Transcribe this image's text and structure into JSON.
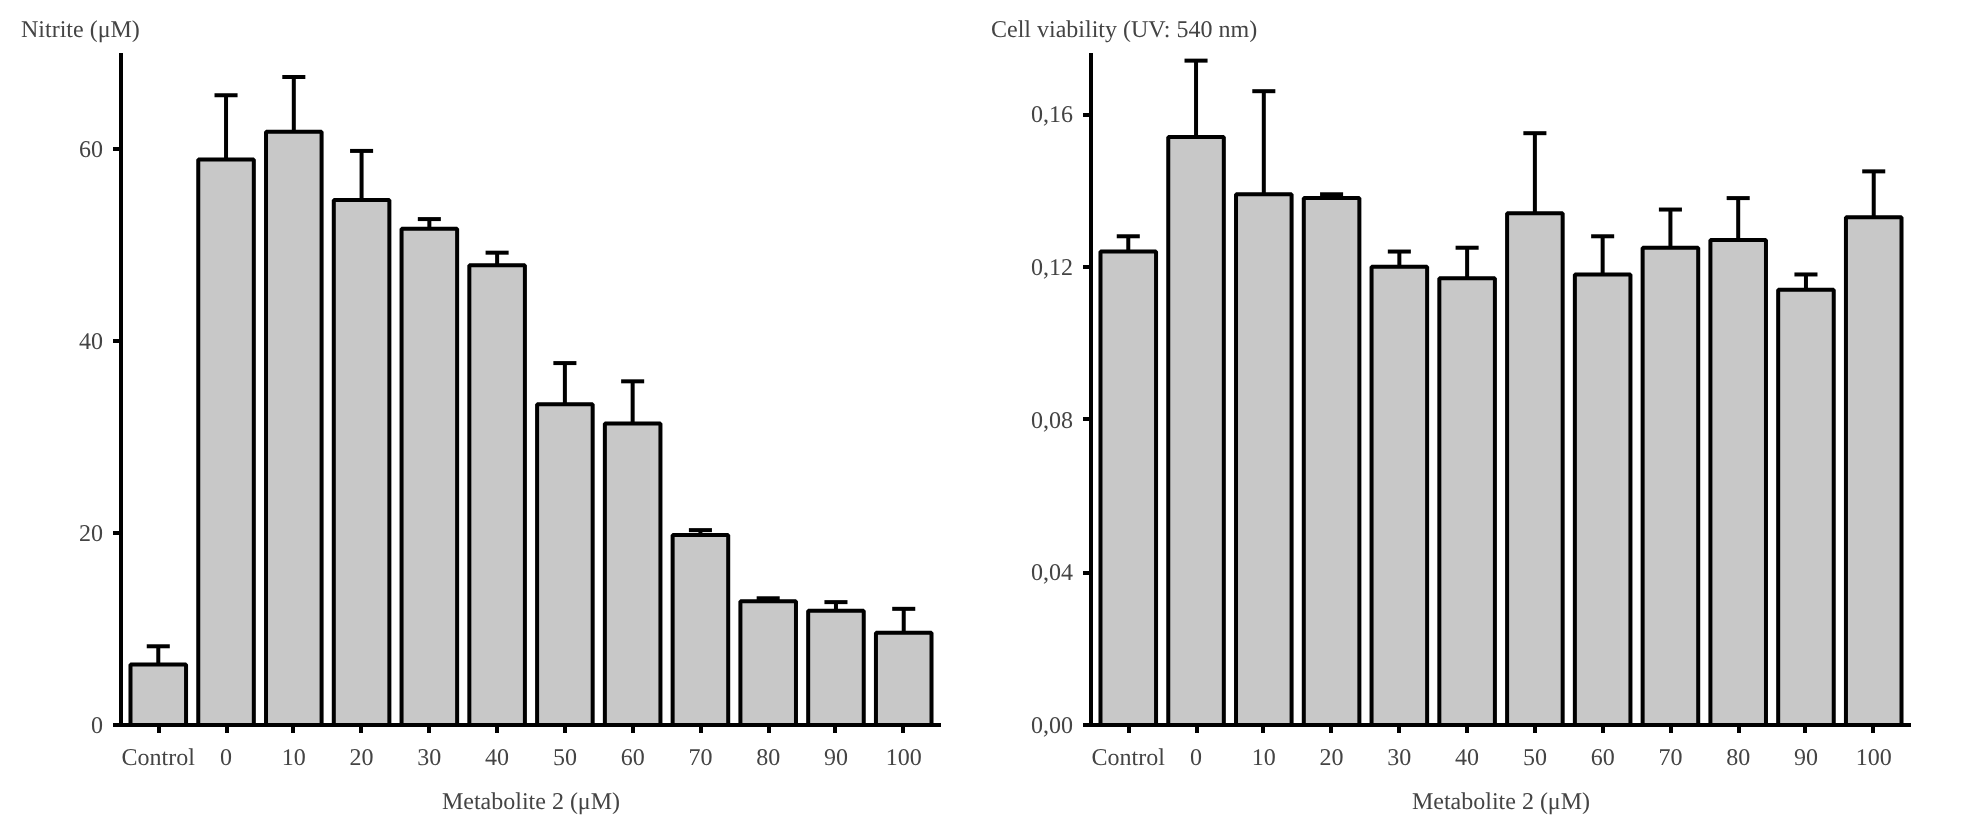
{
  "chart_data": [
    {
      "type": "bar",
      "title": "Nitrite (μM)",
      "xlabel": "Metabolite 2 (μM)",
      "categories": [
        "Control",
        "0",
        "10",
        "20",
        "30",
        "40",
        "50",
        "60",
        "70",
        "80",
        "90",
        "100"
      ],
      "values": [
        6.3,
        58.9,
        61.8,
        54.7,
        51.7,
        47.9,
        33.4,
        31.4,
        19.8,
        12.9,
        11.9,
        9.6
      ],
      "errors": [
        [
          6.3,
          8.2
        ],
        [
          58.9,
          65.6
        ],
        [
          61.8,
          67.5
        ],
        [
          54.7,
          59.8
        ],
        [
          51.7,
          52.7
        ],
        [
          47.9,
          49.2
        ],
        [
          33.4,
          37.7
        ],
        [
          31.4,
          35.8
        ],
        [
          19.8,
          20.3
        ],
        [
          12.9,
          13.2
        ],
        [
          11.9,
          12.8
        ],
        [
          9.6,
          12.1
        ]
      ],
      "color": "#c8c8c8",
      "ylim": [
        0,
        70
      ],
      "yticks": [
        0,
        20,
        40,
        60
      ],
      "grid": false
    },
    {
      "type": "bar",
      "title": "Cell viability (UV: 540 nm)",
      "xlabel": "Metabolite 2 (μM)",
      "categories": [
        "Control",
        "0",
        "10",
        "20",
        "30",
        "40",
        "50",
        "60",
        "70",
        "80",
        "90",
        "100"
      ],
      "values": [
        0.124,
        0.154,
        0.139,
        0.138,
        0.12,
        0.117,
        0.134,
        0.118,
        0.125,
        0.127,
        0.114,
        0.133
      ],
      "errors": [
        [
          0.124,
          0.128
        ],
        [
          0.154,
          0.174
        ],
        [
          0.139,
          0.166
        ],
        [
          0.138,
          0.139
        ],
        [
          0.12,
          0.124
        ],
        [
          0.117,
          0.125
        ],
        [
          0.134,
          0.155
        ],
        [
          0.118,
          0.128
        ],
        [
          0.125,
          0.135
        ],
        [
          0.127,
          0.138
        ],
        [
          0.114,
          0.118
        ],
        [
          0.133,
          0.145
        ]
      ],
      "color": "#c8c8c8",
      "ylim": [
        0,
        0.176
      ],
      "yticks": [
        {
          "value": 0,
          "label": "0,00"
        },
        {
          "value": 0.04,
          "label": "0,04"
        },
        {
          "value": 0.08,
          "label": "0,08"
        },
        {
          "value": 0.12,
          "label": "0,12"
        },
        {
          "value": 0.16,
          "label": "0,16"
        }
      ],
      "grid": false
    }
  ]
}
